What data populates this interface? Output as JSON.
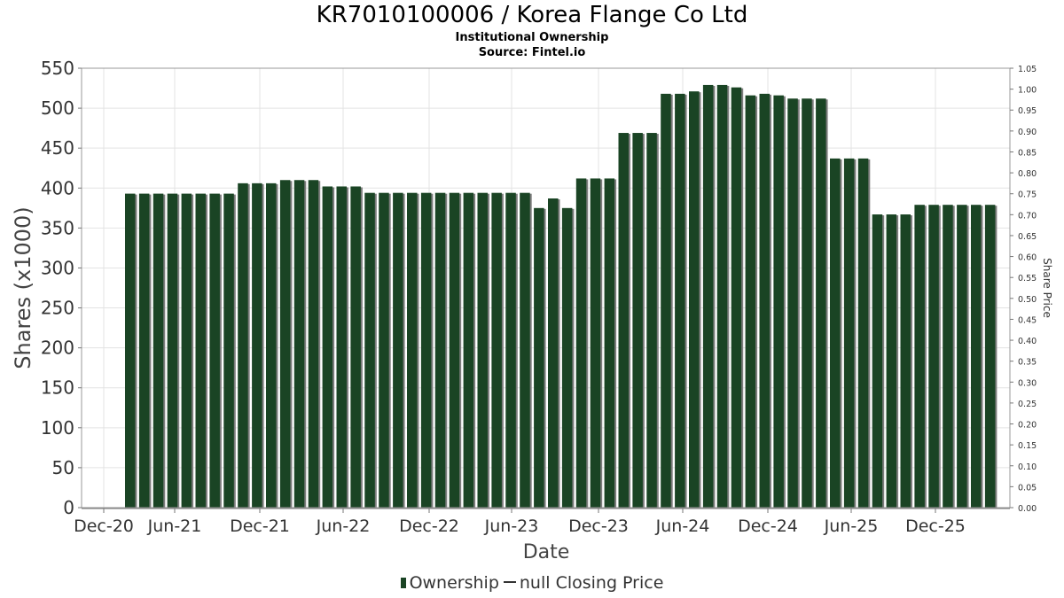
{
  "chart_data": {
    "type": "bar",
    "title": "KR7010100006 / Korea Flange Co Ltd",
    "subtitles": [
      "Institutional Ownership",
      "Source: Fintel.io"
    ],
    "xlabel": "Date",
    "ylabel": "Shares (x1000)",
    "y2label": "Share Price",
    "ylim": [
      0,
      550
    ],
    "y2lim": [
      0,
      1.05
    ],
    "yticks": [
      "0",
      "50",
      "100",
      "150",
      "200",
      "250",
      "300",
      "350",
      "400",
      "450",
      "500",
      "550"
    ],
    "y2ticks": [
      "0.00",
      "0.05",
      "0.10",
      "0.15",
      "0.20",
      "0.25",
      "0.30",
      "0.35",
      "0.40",
      "0.45",
      "0.50",
      "0.55",
      "0.60",
      "0.65",
      "0.70",
      "0.75",
      "0.80",
      "0.85",
      "0.90",
      "0.95",
      "1.00",
      "1.05"
    ],
    "xticks": [
      "Dec-20",
      "Jun-21",
      "Dec-21",
      "Jun-22",
      "Dec-22",
      "Jun-23",
      "Dec-23",
      "Jun-24",
      "Dec-24",
      "Jun-25",
      "Dec-25"
    ],
    "grid": true,
    "legend_placement": "bottom",
    "series": [
      {
        "name": "Ownership",
        "color": "#1a4424",
        "values": [
          393,
          393,
          393,
          393,
          393,
          393,
          393,
          393,
          406,
          406,
          406,
          410,
          410,
          410,
          402,
          402,
          402,
          394,
          394,
          394,
          394,
          394,
          394,
          394,
          394,
          394,
          394,
          394,
          394,
          375,
          387,
          375,
          412,
          412,
          412,
          469,
          469,
          469,
          518,
          518,
          521,
          529,
          529,
          526,
          516,
          518,
          516,
          512,
          512,
          512,
          437,
          437,
          437,
          367,
          367,
          367,
          379,
          379,
          379,
          379,
          379,
          379
        ]
      },
      {
        "name": "null Closing Price",
        "color": "#333333",
        "values": []
      }
    ]
  }
}
